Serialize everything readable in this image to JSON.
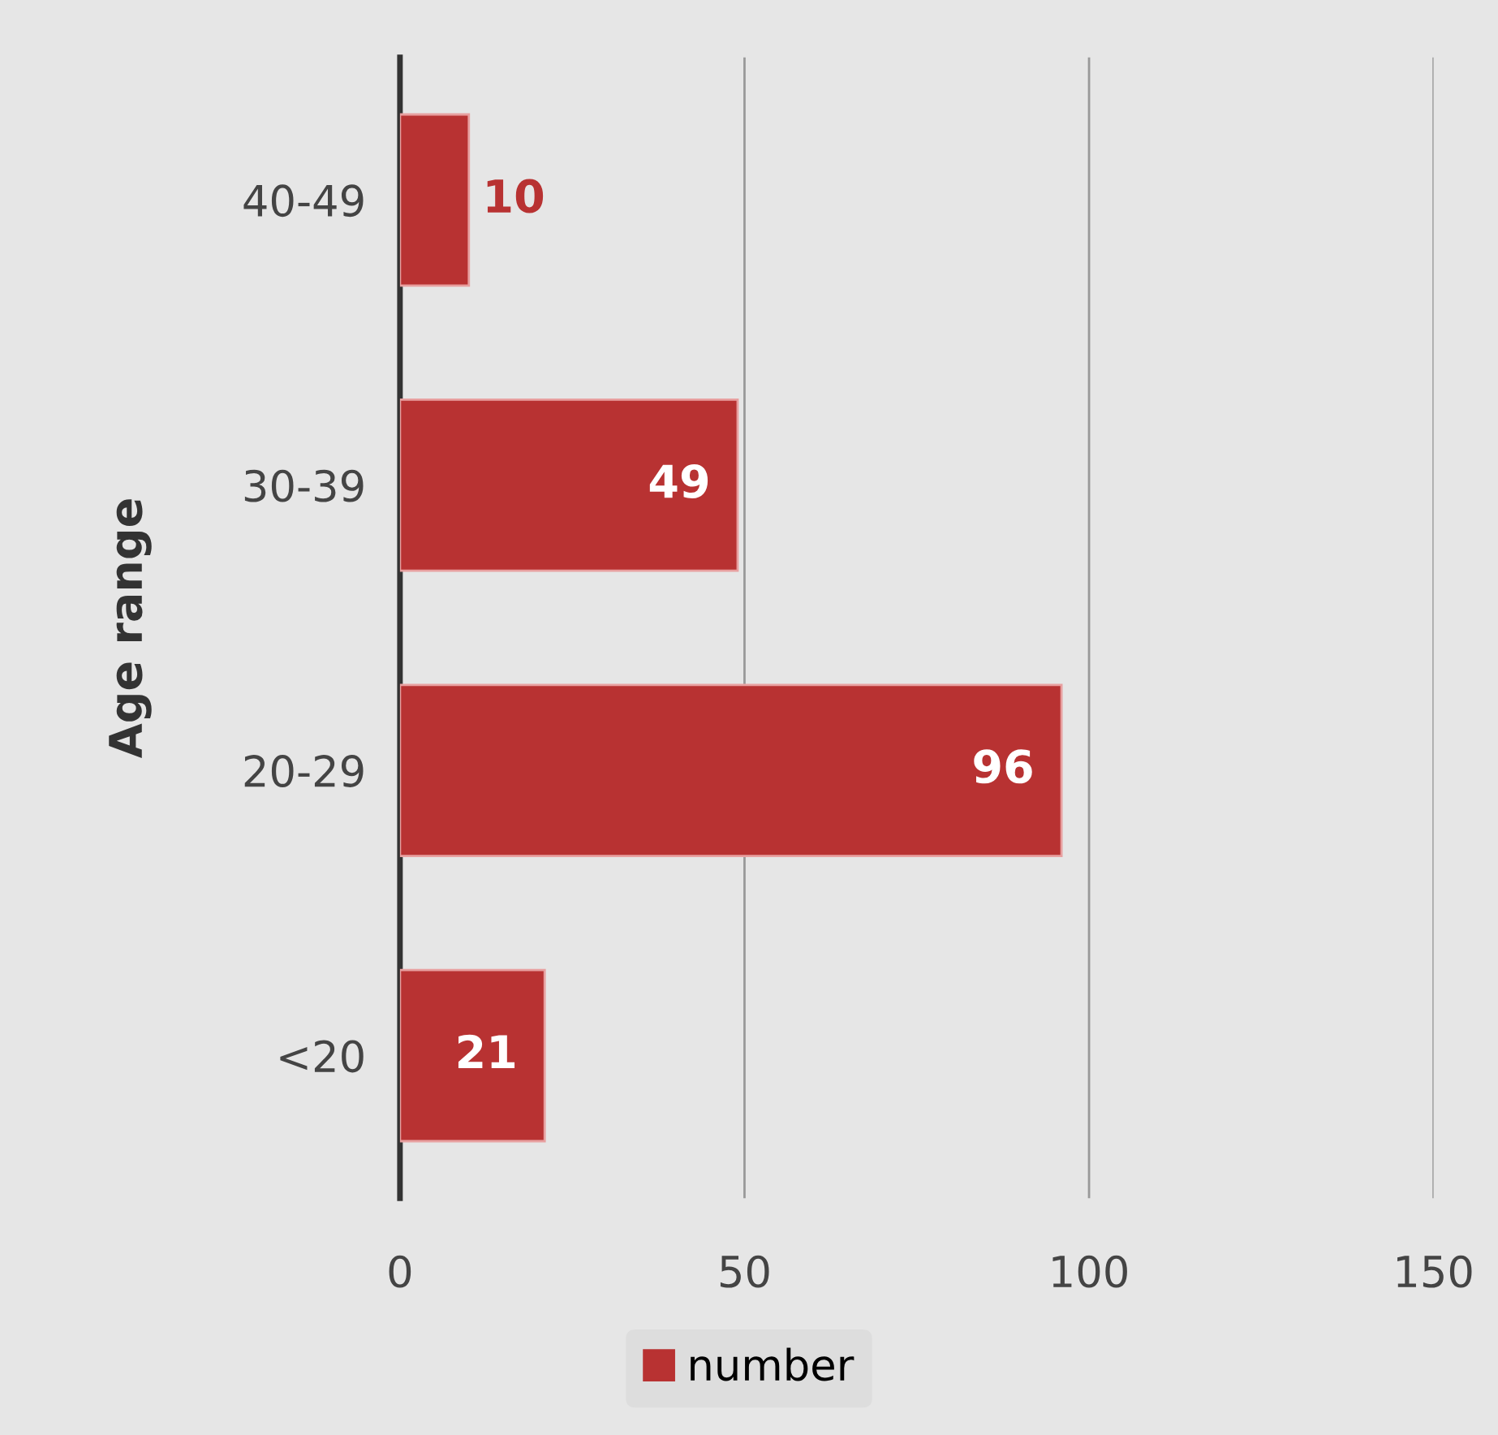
{
  "chart_data": {
    "type": "bar",
    "orientation": "horizontal",
    "ylabel": "Age range",
    "categories": [
      "40-49",
      "30-39",
      "20-29",
      "<20"
    ],
    "series": [
      {
        "name": "number",
        "color": "#b83232",
        "values": [
          10,
          49,
          96,
          21
        ]
      }
    ],
    "xlim": [
      0,
      150
    ],
    "xticks": [
      0,
      50,
      100,
      150
    ],
    "grid": "x",
    "legend": "bottom",
    "data_labels": true
  }
}
